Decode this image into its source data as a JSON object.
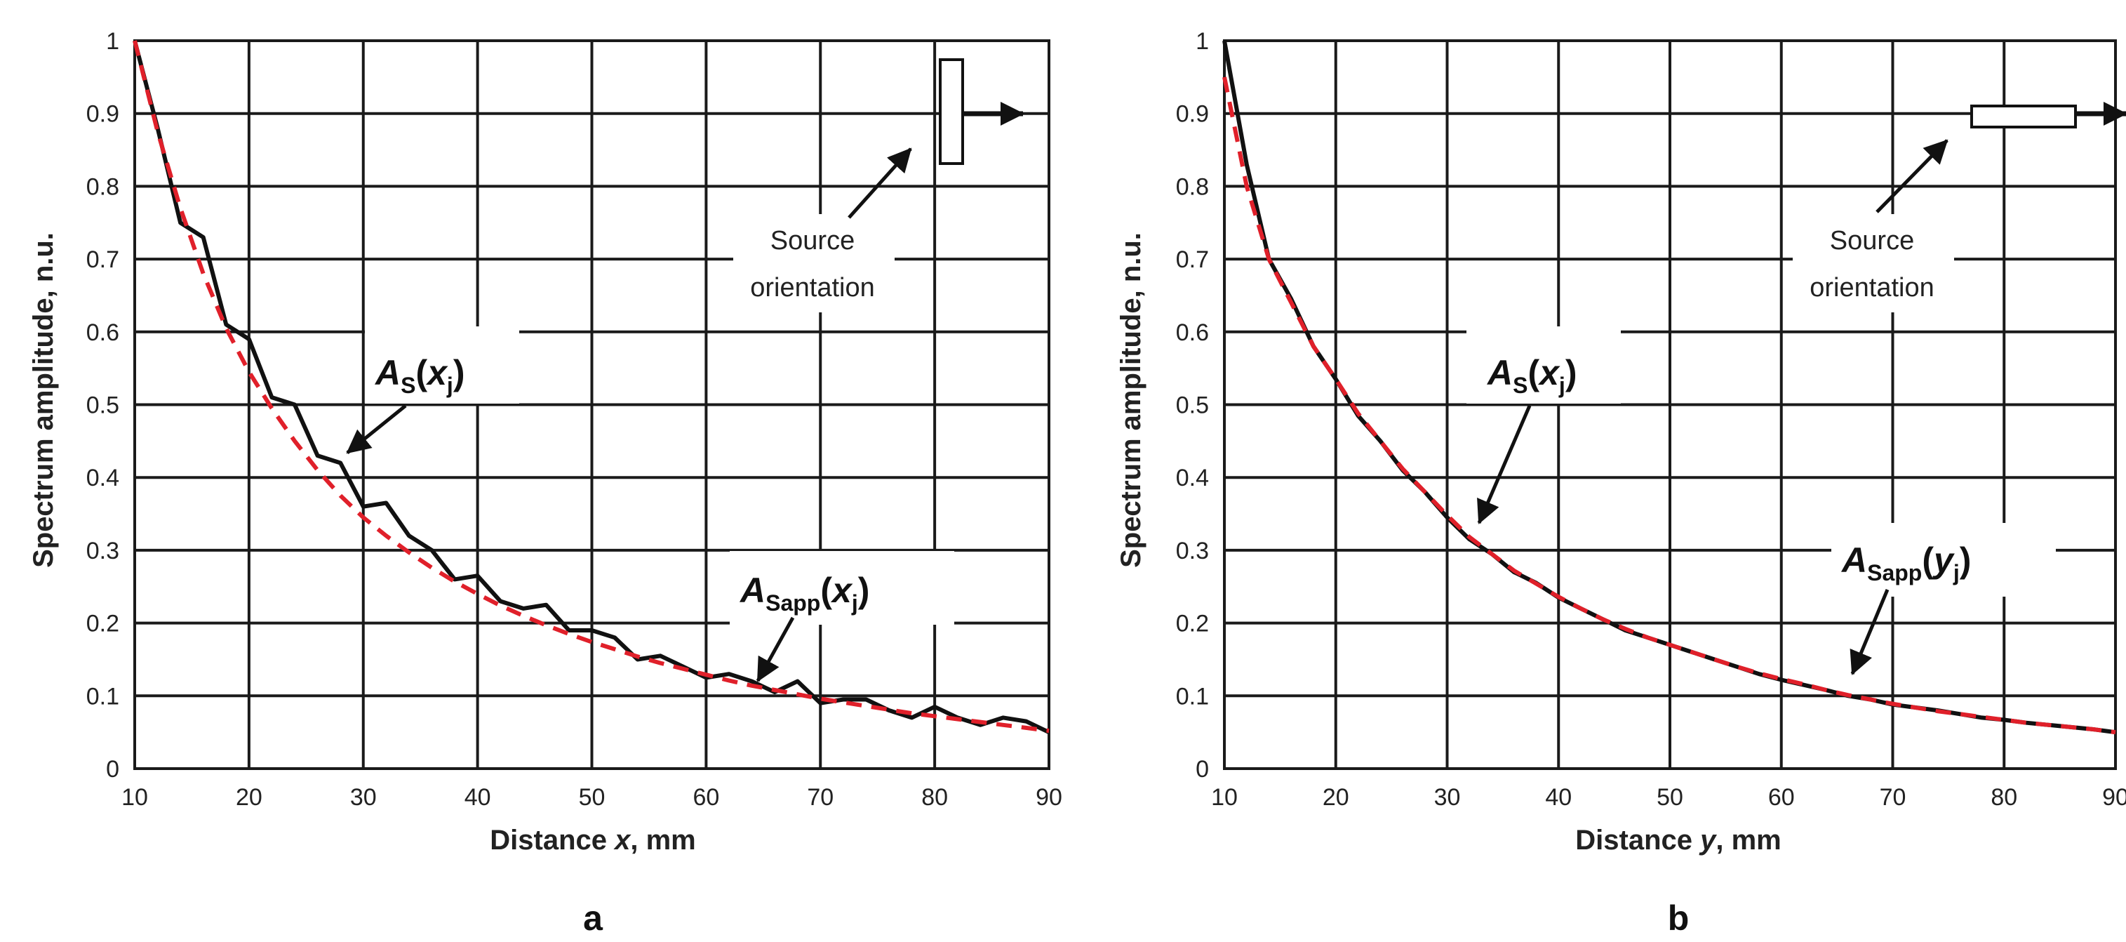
{
  "chart_data": [
    {
      "type": "line",
      "panel_label": "a",
      "xlabel_prefix": "Distance ",
      "xlabel_var": "x",
      "xlabel_suffix": ", mm",
      "ylabel": "Spectrum amplitude, n.u.",
      "xlim": [
        10,
        90
      ],
      "ylim": [
        0,
        1
      ],
      "xticks": [
        "10",
        "20",
        "30",
        "40",
        "50",
        "60",
        "70",
        "80",
        "90"
      ],
      "yticks": [
        "0",
        "0.1",
        "0.2",
        "0.3",
        "0.4",
        "0.5",
        "0.6",
        "0.7",
        "0.8",
        "0.9",
        "1"
      ],
      "grid": true,
      "series": [
        {
          "name": "A_S(x_j)",
          "style": "solid",
          "color": "#111111",
          "x": [
            10,
            12,
            14,
            16,
            18,
            20,
            22,
            24,
            26,
            28,
            30,
            32,
            34,
            36,
            38,
            40,
            42,
            44,
            46,
            48,
            50,
            52,
            54,
            56,
            58,
            60,
            62,
            64,
            66,
            68,
            70,
            72,
            74,
            76,
            78,
            80,
            82,
            84,
            86,
            88,
            90
          ],
          "y": [
            1.0,
            0.88,
            0.75,
            0.73,
            0.61,
            0.59,
            0.51,
            0.5,
            0.43,
            0.42,
            0.36,
            0.365,
            0.32,
            0.3,
            0.26,
            0.265,
            0.23,
            0.22,
            0.225,
            0.19,
            0.19,
            0.18,
            0.15,
            0.155,
            0.14,
            0.125,
            0.13,
            0.12,
            0.105,
            0.12,
            0.09,
            0.095,
            0.095,
            0.08,
            0.07,
            0.085,
            0.07,
            0.06,
            0.07,
            0.065,
            0.05
          ]
        },
        {
          "name": "A_Sapp(x_j)",
          "style": "dashed",
          "color": "#e0202a",
          "x": [
            10,
            12,
            14,
            16,
            18,
            20,
            22,
            24,
            26,
            28,
            30,
            32,
            34,
            36,
            38,
            40,
            42,
            44,
            46,
            48,
            50,
            52,
            54,
            56,
            58,
            60,
            62,
            64,
            66,
            68,
            70,
            72,
            74,
            76,
            78,
            80,
            82,
            84,
            86,
            88,
            90
          ],
          "y": [
            1.0,
            0.875,
            0.77,
            0.68,
            0.605,
            0.545,
            0.495,
            0.45,
            0.41,
            0.375,
            0.345,
            0.32,
            0.297,
            0.276,
            0.257,
            0.24,
            0.224,
            0.21,
            0.197,
            0.185,
            0.174,
            0.164,
            0.154,
            0.145,
            0.137,
            0.129,
            0.121,
            0.114,
            0.108,
            0.102,
            0.096,
            0.091,
            0.086,
            0.081,
            0.076,
            0.072,
            0.068,
            0.064,
            0.06,
            0.056,
            0.052
          ]
        }
      ],
      "annotations": {
        "as": {
          "A": "A",
          "S": "S",
          "open": "(",
          "var": "x",
          "j": "j",
          "close": ")"
        },
        "asapp": {
          "A": "A",
          "S": "Sapp",
          "open": "(",
          "var": "x",
          "j": "j",
          "close": ")"
        },
        "source_line1": "Source",
        "source_line2": "orientation",
        "source_orientation": "vertical"
      }
    },
    {
      "type": "line",
      "panel_label": "b",
      "xlabel_prefix": "Distance ",
      "xlabel_var": "y",
      "xlabel_suffix": ", mm",
      "ylabel": "Spectrum amplitude, n.u.",
      "xlim": [
        10,
        90
      ],
      "ylim": [
        0,
        1
      ],
      "xticks": [
        "10",
        "20",
        "30",
        "40",
        "50",
        "60",
        "70",
        "80",
        "90"
      ],
      "yticks": [
        "0",
        "0.1",
        "0.2",
        "0.3",
        "0.4",
        "0.5",
        "0.6",
        "0.7",
        "0.8",
        "0.9",
        "1"
      ],
      "grid": true,
      "series": [
        {
          "name": "A_S(x_j)",
          "style": "solid",
          "color": "#111111",
          "x": [
            10,
            12,
            14,
            16,
            18,
            20,
            22,
            24,
            26,
            28,
            30,
            32,
            34,
            36,
            38,
            40,
            42,
            44,
            46,
            48,
            50,
            52,
            54,
            56,
            58,
            60,
            62,
            64,
            66,
            68,
            70,
            72,
            74,
            76,
            78,
            80,
            82,
            84,
            86,
            88,
            90
          ],
          "y": [
            1.0,
            0.83,
            0.7,
            0.645,
            0.58,
            0.535,
            0.485,
            0.45,
            0.41,
            0.38,
            0.345,
            0.315,
            0.295,
            0.27,
            0.255,
            0.235,
            0.22,
            0.205,
            0.19,
            0.18,
            0.17,
            0.16,
            0.15,
            0.14,
            0.13,
            0.122,
            0.115,
            0.108,
            0.1,
            0.095,
            0.088,
            0.084,
            0.08,
            0.075,
            0.07,
            0.067,
            0.063,
            0.06,
            0.057,
            0.054,
            0.05
          ]
        },
        {
          "name": "A_Sapp(y_j)",
          "style": "dashed",
          "color": "#e0202a",
          "x": [
            10,
            12,
            14,
            16,
            18,
            20,
            22,
            24,
            26,
            28,
            30,
            32,
            34,
            36,
            38,
            40,
            42,
            44,
            46,
            48,
            50,
            52,
            54,
            56,
            58,
            60,
            62,
            64,
            66,
            68,
            70,
            72,
            74,
            76,
            78,
            80,
            82,
            84,
            86,
            88,
            90
          ],
          "y": [
            0.95,
            0.8,
            0.7,
            0.64,
            0.58,
            0.535,
            0.488,
            0.45,
            0.412,
            0.38,
            0.348,
            0.318,
            0.295,
            0.272,
            0.254,
            0.236,
            0.22,
            0.205,
            0.192,
            0.18,
            0.17,
            0.16,
            0.15,
            0.14,
            0.131,
            0.123,
            0.116,
            0.108,
            0.101,
            0.095,
            0.089,
            0.084,
            0.079,
            0.075,
            0.071,
            0.067,
            0.063,
            0.06,
            0.057,
            0.054,
            0.05
          ]
        }
      ],
      "annotations": {
        "as": {
          "A": "A",
          "S": "S",
          "open": "(",
          "var": "x",
          "j": "j",
          "close": ")"
        },
        "asapp": {
          "A": "A",
          "S": "Sapp",
          "open": "(",
          "var": "y",
          "j": "j",
          "close": ")"
        },
        "source_line1": "Source",
        "source_line2": "orientation",
        "source_orientation": "horizontal"
      }
    }
  ]
}
